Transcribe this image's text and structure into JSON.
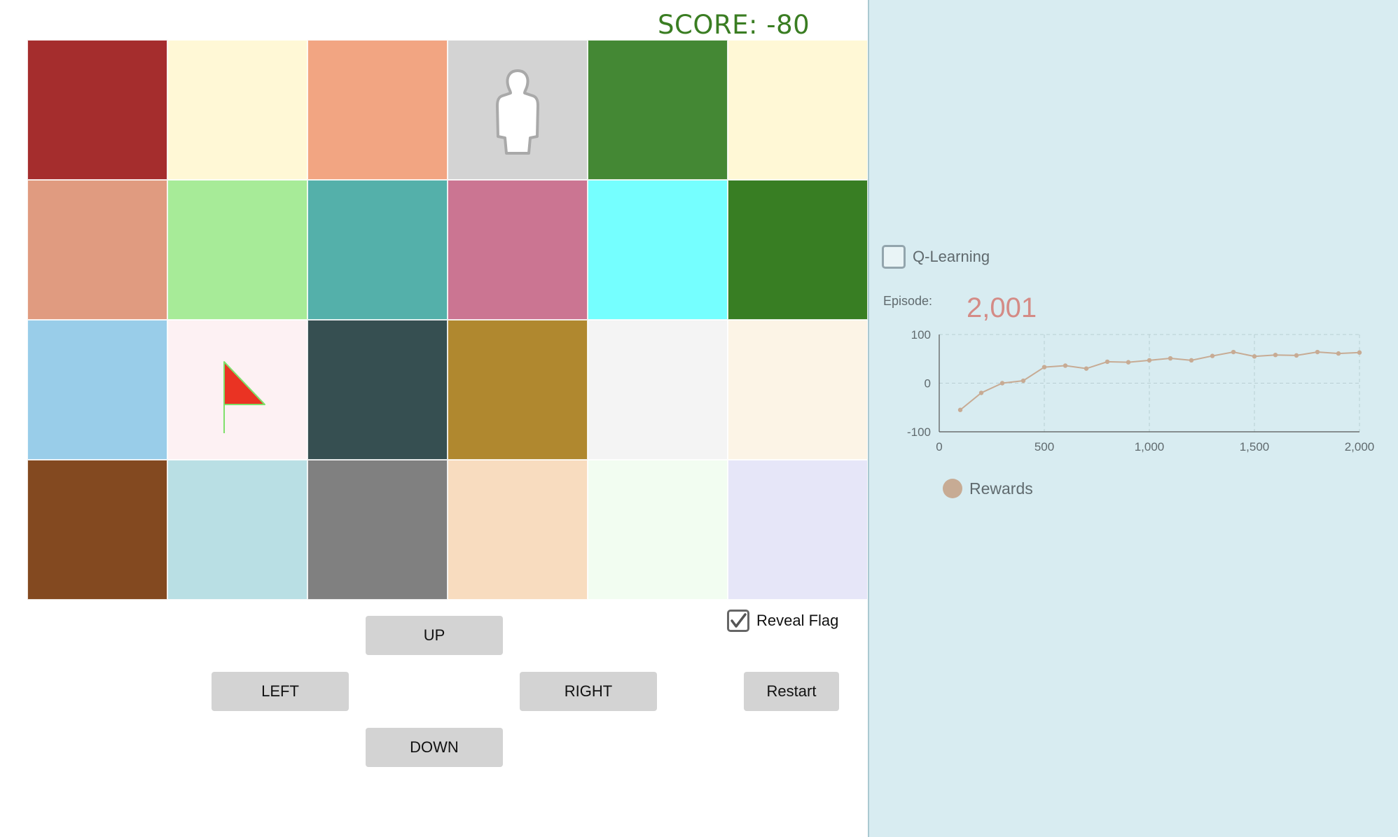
{
  "score": {
    "label": "SCORE: -80"
  },
  "grid": {
    "rows": 4,
    "cols": 6,
    "cells": [
      {
        "color": "#a52d2d"
      },
      {
        "color": "#fff8d6"
      },
      {
        "color": "#f2a582"
      },
      {
        "color": "#d3d3d3",
        "icon": "person-icon"
      },
      {
        "color": "#448834"
      },
      {
        "color": "#fff8d6"
      },
      {
        "color": "#e09b80"
      },
      {
        "color": "#a7eb98"
      },
      {
        "color": "#54b0aa"
      },
      {
        "color": "#cb7592"
      },
      {
        "color": "#75ffff"
      },
      {
        "color": "#387e23"
      },
      {
        "color": "#99cde9"
      },
      {
        "color": "#fdf1f3",
        "icon": "flag-icon"
      },
      {
        "color": "#364f51"
      },
      {
        "color": "#b0882f"
      },
      {
        "color": "#f4f4f4"
      },
      {
        "color": "#fcf4e6"
      },
      {
        "color": "#834920"
      },
      {
        "color": "#b9dfe4"
      },
      {
        "color": "#808080"
      },
      {
        "color": "#f8dcbf"
      },
      {
        "color": "#f2fdf1"
      },
      {
        "color": "#e6e6f8"
      }
    ]
  },
  "controls": {
    "up": "UP",
    "left": "LEFT",
    "right": "RIGHT",
    "down": "DOWN",
    "restart": "Restart",
    "reveal_flag": {
      "label": "Reveal Flag",
      "checked": true
    }
  },
  "panel": {
    "q_learning": {
      "label": "Q-Learning",
      "checked": false
    },
    "episode_label": "Episode:",
    "episode_value": "2,001",
    "legend_label": "Rewards"
  },
  "chart_data": {
    "type": "line",
    "x": [
      100,
      200,
      300,
      400,
      500,
      600,
      700,
      800,
      900,
      1000,
      1100,
      1200,
      1300,
      1400,
      1500,
      1600,
      1700,
      1800,
      1900,
      2000
    ],
    "series": [
      {
        "name": "Rewards",
        "values": [
          -55,
          -20,
          0,
          5,
          33,
          36,
          30,
          44,
          43,
          47,
          51,
          47,
          56,
          64,
          55,
          58,
          57,
          64,
          61,
          63
        ]
      }
    ],
    "xlim": [
      0,
      2000
    ],
    "ylim": [
      -100,
      100
    ],
    "xticks": [
      "0",
      "500",
      "1,000",
      "1,500",
      "2,000"
    ],
    "yticks": [
      "100",
      "0",
      "-100"
    ],
    "grid": true,
    "color": "#c7ab94"
  }
}
